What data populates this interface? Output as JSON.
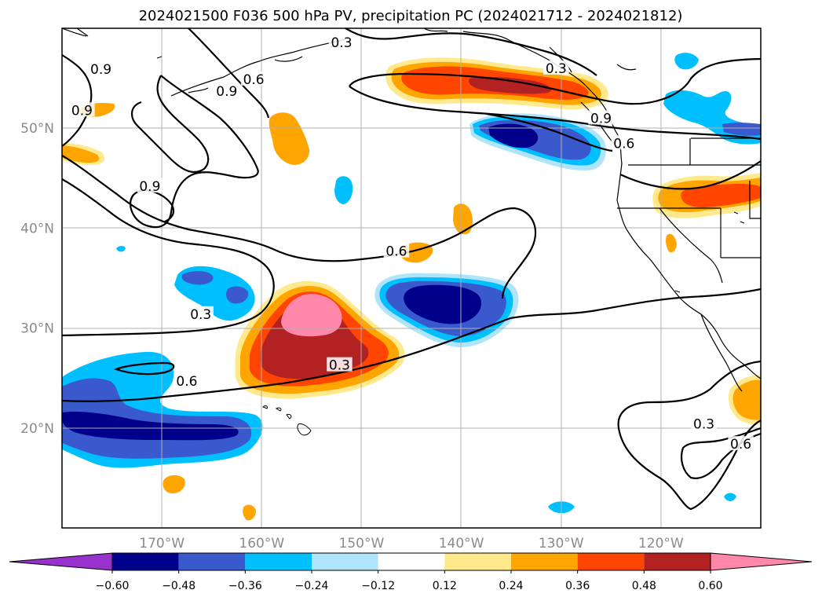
{
  "title": "2024021500 F036 500 hPa PV, precipitation PC (2024021712 - 2024021812)",
  "map": {
    "lon_range": [
      -180,
      -110
    ],
    "lat_range": [
      10,
      60
    ],
    "gridlines": true,
    "lon_ticks": [
      {
        "value": -170,
        "label": "170°W"
      },
      {
        "value": -160,
        "label": "160°W"
      },
      {
        "value": -150,
        "label": "150°W"
      },
      {
        "value": -140,
        "label": "140°W"
      },
      {
        "value": -130,
        "label": "130°W"
      },
      {
        "value": -120,
        "label": "120°W"
      }
    ],
    "lat_ticks": [
      {
        "value": 20,
        "label": "20°N"
      },
      {
        "value": 30,
        "label": "30°N"
      },
      {
        "value": 40,
        "label": "40°N"
      },
      {
        "value": 50,
        "label": "50°N"
      }
    ]
  },
  "colorbar": {
    "extend": "both",
    "levels": [
      -0.6,
      -0.48,
      -0.36,
      -0.24,
      -0.12,
      0.12,
      0.24,
      0.36,
      0.48,
      0.6
    ],
    "tick_labels": [
      "−0.60",
      "−0.48",
      "−0.36",
      "−0.24",
      "−0.12",
      "0.12",
      "0.24",
      "0.36",
      "0.48",
      "0.60"
    ],
    "colors": [
      "#9932cc",
      "#00008b",
      "#3a59cc",
      "#00bfff",
      "#afe4fa",
      "#ffffff",
      "#ffe98c",
      "#ffa500",
      "#ff4500",
      "#b22222",
      "#ff88aa"
    ]
  },
  "pv_contour_labels": [
    {
      "text": "0.3",
      "lon": -152.0,
      "lat": 58.6
    },
    {
      "text": "0.3",
      "lon": -130.5,
      "lat": 56.0
    },
    {
      "text": "0.6",
      "lon": -160.8,
      "lat": 54.9
    },
    {
      "text": "0.6",
      "lon": -123.7,
      "lat": 48.5
    },
    {
      "text": "0.9",
      "lon": -176.1,
      "lat": 55.9
    },
    {
      "text": "0.9",
      "lon": -178.0,
      "lat": 51.8
    },
    {
      "text": "0.9",
      "lon": -163.5,
      "lat": 53.7
    },
    {
      "text": "0.9",
      "lon": -171.2,
      "lat": 44.2
    },
    {
      "text": "0.9",
      "lon": -126.0,
      "lat": 51.0
    },
    {
      "text": "0.6",
      "lon": -146.5,
      "lat": 37.7
    },
    {
      "text": "0.3",
      "lon": -166.1,
      "lat": 31.4
    },
    {
      "text": "0.6",
      "lon": -167.5,
      "lat": 24.7
    },
    {
      "text": "0.3",
      "lon": -152.2,
      "lat": 26.3
    },
    {
      "text": "0.3",
      "lon": -115.7,
      "lat": 20.4
    },
    {
      "text": "0.6",
      "lon": -112.0,
      "lat": 18.4
    }
  ]
}
